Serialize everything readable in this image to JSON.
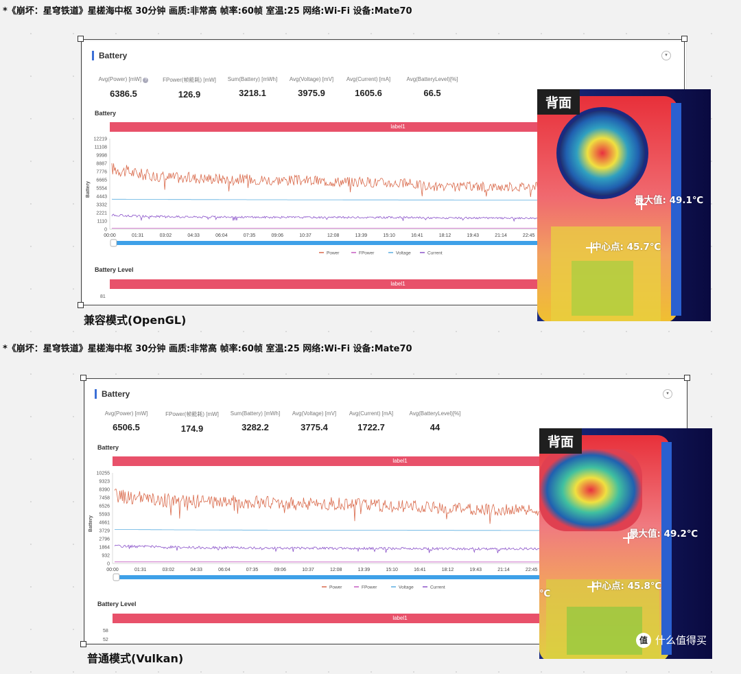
{
  "top": {
    "caption": "*《崩坏：星穹铁道》星槎海中枢 30分钟 画质:非常高  帧率:60帧  室温:25  网络:Wi-Fi 设备:Mate70",
    "mode_label": "兼容模式(OpenGL)",
    "panel": {
      "title": "Battery",
      "stats": [
        {
          "label": "Avg(Power) [mW]",
          "value": "6386.5"
        },
        {
          "label": "FPower(帧能耗) [mW]",
          "value": "126.9"
        },
        {
          "label": "Sum(Battery) [mWh]",
          "value": "3218.1"
        },
        {
          "label": "Avg(Voltage) [mV]",
          "value": "3975.9"
        },
        {
          "label": "Avg(Current) [mA]",
          "value": "1605.6"
        },
        {
          "label": "Avg(BatteryLevel)[%]",
          "value": "66.5"
        }
      ],
      "section1": "Battery",
      "label_bar": "label1",
      "y_axis_title": "Battery",
      "y_ticks": [
        "12219",
        "11108",
        "9998",
        "8887",
        "7776",
        "6665",
        "5554",
        "4443",
        "3332",
        "2221",
        "1110",
        "0"
      ],
      "x_ticks": [
        "00:00",
        "01:31",
        "03:02",
        "04:33",
        "06:04",
        "07:35",
        "09:06",
        "10:37",
        "12:08",
        "13:39",
        "15:10",
        "16:41",
        "18:12",
        "19:43",
        "21:14",
        "22:45"
      ],
      "legend": [
        "Power",
        "FPower",
        "Voltage",
        "Current"
      ],
      "section2": "Battery Level",
      "label_bar2": "label1",
      "level_ticks": [
        "81"
      ]
    },
    "thermal": {
      "tag": "背面",
      "max_text": "最大值: 49.1℃",
      "center_text": "中心点: 45.7℃"
    }
  },
  "bottom": {
    "caption": "*《崩坏：星穹铁道》星槎海中枢 30分钟 画质:非常高  帧率:60帧  室温:25  网络:Wi-Fi 设备:Mate70",
    "mode_label": "普通模式(Vulkan)",
    "panel": {
      "title": "Battery",
      "stats": [
        {
          "label": "Avg(Power) [mW]",
          "value": "6506.5"
        },
        {
          "label": "FPower(帧能耗) [mW]",
          "value": "174.9"
        },
        {
          "label": "Sum(Battery) [mWh]",
          "value": "3282.2"
        },
        {
          "label": "Avg(Voltage) [mV]",
          "value": "3775.4"
        },
        {
          "label": "Avg(Current) [mA]",
          "value": "1722.7"
        },
        {
          "label": "Avg(BatteryLevel)[%]",
          "value": "44"
        }
      ],
      "section1": "Battery",
      "label_bar": "label1",
      "y_axis_title": "Battery",
      "y_ticks": [
        "10255",
        "9323",
        "8390",
        "7458",
        "6526",
        "5593",
        "4661",
        "3729",
        "2796",
        "1864",
        "932",
        "0"
      ],
      "x_ticks": [
        "00:00",
        "01:31",
        "03:02",
        "04:33",
        "06:04",
        "07:35",
        "09:06",
        "10:37",
        "12:08",
        "13:39",
        "15:10",
        "16:41",
        "18:12",
        "19:43",
        "21:14",
        "22:45"
      ],
      "legend": [
        "Power",
        "FPower",
        "Voltage",
        "Current"
      ],
      "section2": "Battery Level",
      "label_bar2": "label1",
      "level_ticks": [
        "58",
        "52"
      ]
    },
    "thermal": {
      "tag": "背面",
      "max_text": "最大值: 49.2℃",
      "center_text": "中心点: 45.8℃",
      "edge_text": "℃"
    },
    "watermark": "什么值得买",
    "watermark_icon": "值"
  },
  "colors": {
    "power": "#d9694a",
    "fpower": "#c45bc0",
    "voltage": "#5aaee0",
    "current": "#8a52c9",
    "label_bar": "#e8516a",
    "scroll": "#3ea0e8"
  },
  "chart_data": [
    {
      "type": "line",
      "title": "Battery",
      "ylabel": "Battery",
      "ylim": [
        0,
        12219
      ],
      "x": [
        "00:00",
        "01:31",
        "03:02",
        "04:33",
        "06:04",
        "07:35",
        "09:06",
        "10:37",
        "12:08",
        "13:39",
        "15:10",
        "16:41",
        "18:12",
        "19:43",
        "21:14",
        "22:45"
      ],
      "series": [
        {
          "name": "Power",
          "values": [
            8200,
            7400,
            7000,
            6900,
            6800,
            6700,
            6600,
            6500,
            6400,
            6300,
            6100,
            5600,
            5800,
            5700,
            5800,
            5700
          ]
        },
        {
          "name": "FPower",
          "values": [
            130,
            130,
            128,
            127,
            126,
            126,
            126,
            125,
            126,
            126,
            126,
            126,
            127,
            127,
            127,
            127
          ]
        },
        {
          "name": "Voltage",
          "values": [
            4050,
            4030,
            4010,
            4000,
            3990,
            3980,
            3975,
            3970,
            3965,
            3960,
            3955,
            3950,
            3945,
            3940,
            3935,
            3930
          ]
        },
        {
          "name": "Current",
          "values": [
            1900,
            1750,
            1700,
            1650,
            1650,
            1620,
            1610,
            1600,
            1600,
            1590,
            1580,
            1500,
            1520,
            1500,
            1510,
            1500
          ]
        }
      ]
    },
    {
      "type": "line",
      "title": "Battery",
      "ylabel": "Battery",
      "ylim": [
        0,
        10255
      ],
      "x": [
        "00:00",
        "01:31",
        "03:02",
        "04:33",
        "06:04",
        "07:35",
        "09:06",
        "10:37",
        "12:08",
        "13:39",
        "15:10",
        "16:41",
        "18:12",
        "19:43",
        "21:14",
        "22:45"
      ],
      "series": [
        {
          "name": "Power",
          "values": [
            7700,
            7300,
            7100,
            7000,
            7000,
            6900,
            6800,
            6800,
            6700,
            6600,
            6400,
            6200,
            6100,
            6100,
            6000,
            6000
          ]
        },
        {
          "name": "FPower",
          "values": [
            180,
            178,
            176,
            175,
            175,
            175,
            174,
            174,
            174,
            174,
            174,
            173,
            173,
            173,
            173,
            173
          ]
        },
        {
          "name": "Voltage",
          "values": [
            3850,
            3830,
            3810,
            3800,
            3790,
            3780,
            3775,
            3770,
            3765,
            3760,
            3755,
            3750,
            3745,
            3740,
            3735,
            3730
          ]
        },
        {
          "name": "Current",
          "values": [
            2000,
            1900,
            1850,
            1800,
            1780,
            1760,
            1740,
            1720,
            1720,
            1700,
            1690,
            1680,
            1660,
            1650,
            1650,
            1640
          ]
        }
      ]
    }
  ]
}
